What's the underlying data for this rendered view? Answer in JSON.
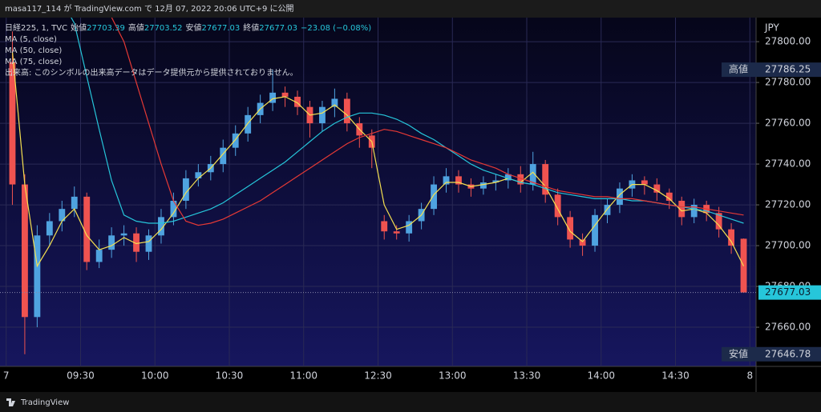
{
  "header": {
    "title": "masa117_114 が TradingView.com で 12月 07, 2022 20:06 UTC+9 に公開"
  },
  "footer": {
    "brand": "TradingView"
  },
  "chart_data": {
    "type": "candlestick",
    "symbol": "日経225, 1, TVC",
    "ohlc_names": [
      "始値",
      "高値",
      "安値",
      "終値"
    ],
    "change_label": "−23.08 (−0.08%)",
    "volume_note": "出来高: このシンボルの出来高データはデータ提供元から提供されておりません。",
    "currency": "JPY",
    "up_color": "#4fa3e0",
    "down_color": "#ef5350",
    "x": [
      2.5,
      7.5,
      12.5,
      17.5,
      22.5,
      27.5,
      32.5,
      37.5,
      42.5,
      47.5,
      52.5,
      57.5,
      62.5,
      67.5,
      72.5,
      77.5,
      82.5,
      87.5,
      92.5,
      97.5,
      102.5,
      107.5,
      112.5,
      117.5,
      122.5,
      127.5,
      132.5,
      137.5,
      142.5,
      147.5,
      152.5,
      157.5,
      162.5,
      167.5,
      172.5,
      177.5,
      182.5,
      187.5,
      192.5,
      197.5,
      202.5,
      207.5,
      212.5,
      217.5,
      222.5,
      227.5,
      232.5,
      237.5,
      242.5,
      247.5,
      252.5,
      257.5,
      262.5,
      267.5,
      272.5,
      277.5,
      282.5,
      287.5,
      292.5,
      297.5
    ],
    "open": [
      27790,
      27730,
      27665,
      27705,
      27712,
      27718,
      27724,
      27692,
      27698,
      27705,
      27706,
      27697,
      27705,
      27714,
      27722,
      27733,
      27736,
      27740,
      27748,
      27755,
      27764,
      27770,
      27775,
      27773,
      27768,
      27760,
      27768,
      27772,
      27760,
      27754,
      27712,
      27707,
      27706,
      27712,
      27718,
      27730,
      27734,
      27730,
      27728,
      27731,
      27732,
      27735,
      27730,
      27740,
      27725,
      27714,
      27703,
      27700,
      27715,
      27720,
      27728,
      27732,
      27730,
      27726,
      27722,
      27714,
      27720,
      27716,
      27708,
      27703.39
    ],
    "high": [
      27805,
      27735,
      27710,
      27716,
      27722,
      27729,
      27726,
      27703,
      27709,
      27710,
      27709,
      27708,
      27718,
      27726,
      27737,
      27740,
      27744,
      27752,
      27759,
      27768,
      27774,
      27786.25,
      27778,
      27776,
      27771,
      27771,
      27777,
      27775,
      27763,
      27757,
      27715,
      27710,
      27715,
      27721,
      27734,
      27738,
      27737,
      27733,
      27734,
      27735,
      27738,
      27739,
      27746,
      27742,
      27728,
      27717,
      27706,
      27718,
      27723,
      27731,
      27735,
      27734,
      27733,
      27728,
      27724,
      27723,
      27722,
      27719,
      27711,
      27703.52
    ],
    "low": [
      27720,
      27646.78,
      27660,
      27700,
      27707,
      27714,
      27688,
      27689,
      27694,
      27700,
      27692,
      27693,
      27701,
      27710,
      27718,
      27729,
      27732,
      27736,
      27744,
      27751,
      27760,
      27766,
      27768,
      27764,
      27753,
      27756,
      27763,
      27756,
      27748,
      27738,
      27703,
      27703,
      27702,
      27708,
      27715,
      27726,
      27726,
      27724,
      27725,
      27727,
      27728,
      27726,
      27727,
      27721,
      27710,
      27699,
      27695,
      27697,
      27711,
      27716,
      27724,
      27725,
      27722,
      27718,
      27710,
      27711,
      27712,
      27704,
      27696,
      27677.03
    ],
    "close": [
      27730,
      27665,
      27705,
      27712,
      27718,
      27724,
      27692,
      27698,
      27705,
      27706,
      27697,
      27705,
      27714,
      27722,
      27733,
      27736,
      27740,
      27748,
      27755,
      27764,
      27770,
      27775,
      27773,
      27768,
      27760,
      27768,
      27772,
      27760,
      27754,
      27748,
      27707,
      27706,
      27712,
      27718,
      27730,
      27734,
      27730,
      27728,
      27731,
      27732,
      27735,
      27730,
      27740,
      27725,
      27714,
      27703,
      27700,
      27715,
      27720,
      27728,
      27732,
      27730,
      27726,
      27722,
      27714,
      27720,
      27716,
      27708,
      27700,
      27677.03
    ],
    "series": [
      {
        "name": "MA (5, close)",
        "color": "#f5e050",
        "values": [
          27795,
          27730,
          27690,
          27700,
          27712,
          27718,
          27705,
          27698,
          27700,
          27704,
          27701,
          27702,
          27708,
          27716,
          27726,
          27733,
          27738,
          27745,
          27752,
          27760,
          27767,
          27772,
          27773,
          27770,
          27764,
          27765,
          27769,
          27764,
          27757,
          27751,
          27720,
          27708,
          27710,
          27715,
          27725,
          27731,
          27731,
          27729,
          27730,
          27731,
          27733,
          27731,
          27736,
          27729,
          27718,
          27707,
          27702,
          27710,
          27718,
          27725,
          27730,
          27730,
          27727,
          27723,
          27717,
          27718,
          27716,
          27710,
          27702,
          27690
        ]
      },
      {
        "name": "MA (50, close)",
        "color": "#26c6da",
        "values": [
          null,
          null,
          null,
          null,
          27820,
          27809,
          27783,
          27757,
          27732,
          27715,
          27712,
          27711,
          27711,
          27712,
          27714,
          27716,
          27718,
          27721,
          27725,
          27729,
          27733,
          27737,
          27741,
          27746,
          27751,
          27756,
          27760,
          27763,
          27765,
          27765,
          27764,
          27762,
          27759,
          27755,
          27752,
          27748,
          27744,
          27740,
          27737,
          27735,
          27733,
          27731,
          27730,
          27728,
          27726,
          27725,
          27724,
          27723,
          27723,
          27723,
          27722,
          27722,
          27721,
          27720,
          27719,
          27718,
          27717,
          27715,
          27713,
          27711
        ]
      },
      {
        "name": "MA (75, close)",
        "color": "#e53935",
        "values": [
          null,
          null,
          null,
          null,
          null,
          null,
          null,
          null,
          27812,
          27800,
          27780,
          27760,
          27740,
          27722,
          27712,
          27710,
          27711,
          27713,
          27716,
          27719,
          27722,
          27726,
          27730,
          27734,
          27738,
          27742,
          27746,
          27750,
          27753,
          27755,
          27757,
          27756,
          27754,
          27752,
          27750,
          27748,
          27745,
          27742,
          27740,
          27738,
          27735,
          27733,
          27731,
          27729,
          27727,
          27726,
          27725,
          27724,
          27724,
          27723,
          27723,
          27722,
          27721,
          27720,
          27719,
          27719,
          27718,
          27717,
          27716,
          27715
        ]
      }
    ],
    "xlim": [
      -2.5,
      302.5
    ],
    "xticks": [
      {
        "value": 0,
        "label": "7"
      },
      {
        "value": 30,
        "label": "09:30"
      },
      {
        "value": 60,
        "label": "10:00"
      },
      {
        "value": 90,
        "label": "10:30"
      },
      {
        "value": 120,
        "label": "11:00"
      },
      {
        "value": 150,
        "label": "12:30"
      },
      {
        "value": 180,
        "label": "13:00"
      },
      {
        "value": 210,
        "label": "13:30"
      },
      {
        "value": 240,
        "label": "14:00"
      },
      {
        "value": 270,
        "label": "14:30"
      },
      {
        "value": 300,
        "label": "8"
      }
    ],
    "ylim": [
      27640.8,
      27811.8
    ],
    "yticks": [
      {
        "value": 27660,
        "label": "27660.00"
      },
      {
        "value": 27680,
        "label": "27680.00"
      },
      {
        "value": 27700,
        "label": "27700.00"
      },
      {
        "value": 27720,
        "label": "27720.00"
      },
      {
        "value": 27740,
        "label": "27740.00"
      },
      {
        "value": 27760,
        "label": "27760.00"
      },
      {
        "value": 27780,
        "label": "27780.00"
      },
      {
        "value": 27800,
        "label": "27800.00"
      }
    ],
    "grid": true,
    "price_labels": [
      {
        "label": "高値",
        "value": 27786.25
      },
      {
        "value": 27677.03
      },
      {
        "label": "安値",
        "value": 27646.78
      }
    ]
  }
}
